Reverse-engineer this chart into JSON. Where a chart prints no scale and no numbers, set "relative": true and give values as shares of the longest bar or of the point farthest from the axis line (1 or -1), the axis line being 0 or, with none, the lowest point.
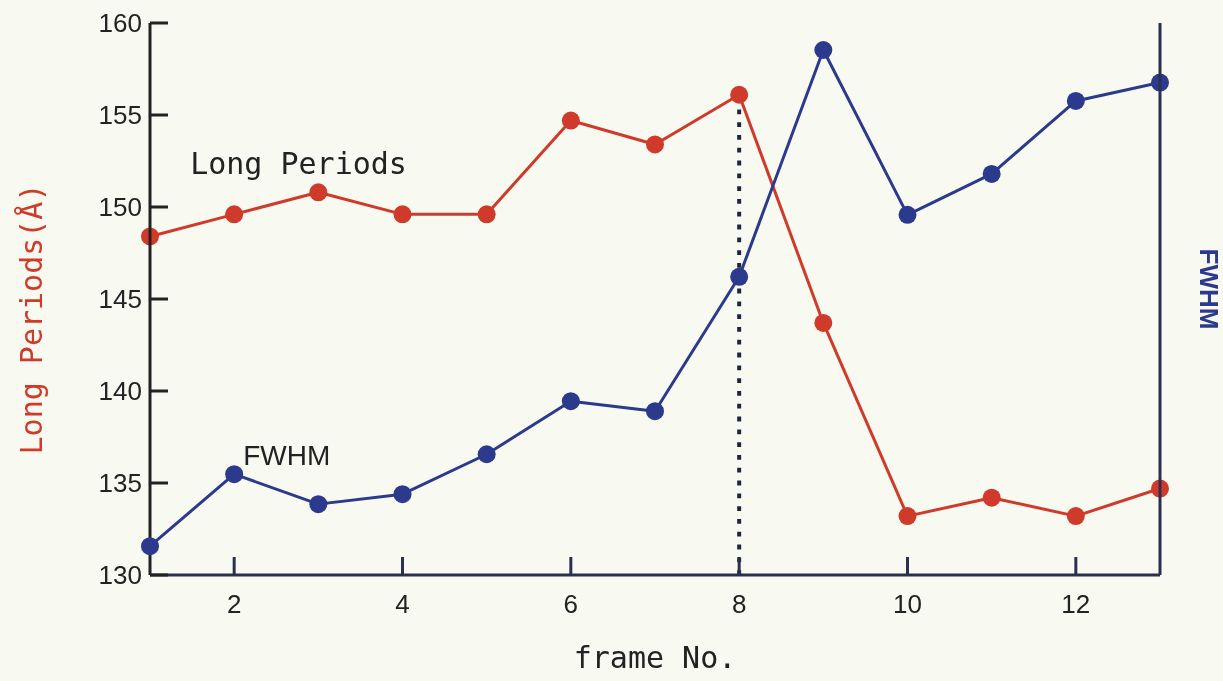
{
  "chart_data": [
    {
      "type": "line",
      "xlabel": "frame No.",
      "ylabel": "Long Periods(Å)",
      "x": [
        1,
        2,
        3,
        4,
        5,
        6,
        7,
        8,
        9,
        10,
        11,
        12,
        13
      ],
      "series": [
        {
          "name": "Long Periods",
          "color": "#d03a2a",
          "values": [
            148.4,
            149.6,
            150.8,
            149.6,
            149.6,
            154.7,
            153.4,
            156.1,
            143.7,
            133.2,
            134.2,
            133.2,
            134.7
          ]
        }
      ],
      "xlim": [
        1,
        13
      ],
      "xticks": [
        2,
        4,
        6,
        8,
        10,
        12
      ],
      "ylim": [
        130,
        160
      ],
      "yticks": [
        130,
        135,
        140,
        145,
        150,
        155,
        160
      ],
      "ref_lines": [
        {
          "axis": "x",
          "value": 8,
          "color": "#1f2540",
          "line_style": "dotted"
        }
      ],
      "marker": "circle",
      "line_style": "solid",
      "grid": false
    },
    {
      "type": "line",
      "relative": true,
      "ylabel": "FWHM",
      "x": [
        1,
        2,
        3,
        4,
        5,
        6,
        7,
        8,
        9,
        10,
        11,
        12,
        13
      ],
      "xlim": [
        1,
        13
      ],
      "series": [
        {
          "name": "FWHM",
          "color": "#2b3a8c",
          "values": [
            0.055,
            0.192,
            0.135,
            0.154,
            0.23,
            0.331,
            0.312,
            0.568,
            1,
            0.686,
            0.764,
            0.903,
            0.938
          ]
        }
      ],
      "marker": "circle",
      "line_style": "solid",
      "grid": false
    }
  ]
}
